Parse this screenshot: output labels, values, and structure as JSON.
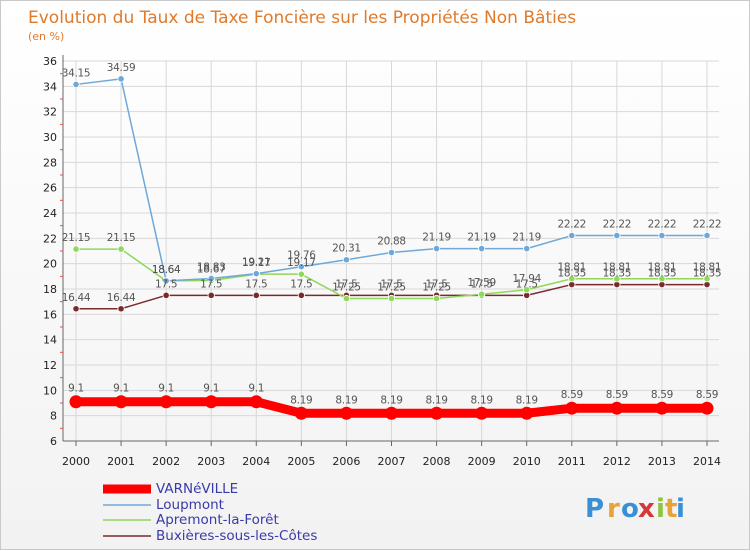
{
  "chart_data": {
    "type": "line",
    "title": "Evolution du Taux de Taxe Foncière sur les Propriétés Non Bâties",
    "subtitle": "(en %)",
    "xlabel": "",
    "ylabel": "",
    "ylim": [
      6,
      36
    ],
    "yticks": [
      "6",
      "8",
      "10",
      "12",
      "14",
      "16",
      "18",
      "20",
      "22",
      "24",
      "26",
      "28",
      "30",
      "32",
      "34",
      "36"
    ],
    "x": [
      "2000",
      "2001",
      "2002",
      "2003",
      "2004",
      "2005",
      "2006",
      "2007",
      "2008",
      "2009",
      "2010",
      "2011",
      "2012",
      "2013",
      "2014"
    ],
    "series": [
      {
        "name": "VARNéVILLE",
        "color": "#ff0000",
        "values": [
          9.1,
          9.1,
          9.1,
          9.1,
          9.1,
          8.19,
          8.19,
          8.19,
          8.19,
          8.19,
          8.19,
          8.59,
          8.59,
          8.59,
          8.59
        ],
        "labels": [
          "9.1",
          "9.1",
          "9.1",
          "9.1",
          "9.1",
          "8.19",
          "8.19",
          "8.19",
          "8.19",
          "8.19",
          "8.19",
          "8.59",
          "8.59",
          "8.59",
          "8.59"
        ]
      },
      {
        "name": "Loupmont",
        "color": "#6fa8d8",
        "values": [
          34.15,
          34.59,
          18.64,
          18.83,
          19.21,
          19.76,
          20.31,
          20.88,
          21.19,
          21.19,
          21.19,
          22.22,
          22.22,
          22.22,
          22.22
        ],
        "labels": [
          "34.15",
          "34.59",
          "18.64",
          "18.83",
          "19.21",
          "19.76",
          "20.31",
          "20.88",
          "21.19",
          "21.19",
          "21.19",
          "22.22",
          "22.22",
          "22.22",
          "22.22"
        ]
      },
      {
        "name": "Apremont-la-Forêt",
        "color": "#8fd85a",
        "values": [
          21.15,
          21.15,
          18.64,
          18.67,
          19.17,
          19.17,
          17.25,
          17.25,
          17.25,
          17.59,
          17.94,
          18.81,
          18.81,
          18.81,
          18.81
        ],
        "labels": [
          "21.15",
          "21.15",
          "18.64",
          "18.67",
          "19.17",
          "19.17",
          "17.25",
          "17.25",
          "17.25",
          "17.59",
          "17.94",
          "18.81",
          "18.81",
          "18.81",
          "18.81"
        ]
      },
      {
        "name": "Buxières-sous-les-Côtes",
        "color": "#7a2a2a",
        "values": [
          16.44,
          16.44,
          17.5,
          17.5,
          17.5,
          17.5,
          17.5,
          17.5,
          17.5,
          17.5,
          17.5,
          18.35,
          18.35,
          18.35,
          18.35
        ],
        "labels": [
          "16.44",
          "16.44",
          "17.5",
          "17.5",
          "17.5",
          "17.5",
          "17.5",
          "17.5",
          "17.5",
          "17.5",
          "17.5",
          "18.35",
          "18.35",
          "18.35",
          "18.35"
        ]
      }
    ]
  },
  "logo": {
    "letters": [
      "P",
      "r",
      "o",
      "x",
      "i",
      "t",
      "i"
    ],
    "colors": [
      "#3a8fd6",
      "#e8a23a",
      "#3a8fd6",
      "#d6383a",
      "#8cc63f",
      "#e8a23a",
      "#3a8fd6"
    ]
  }
}
